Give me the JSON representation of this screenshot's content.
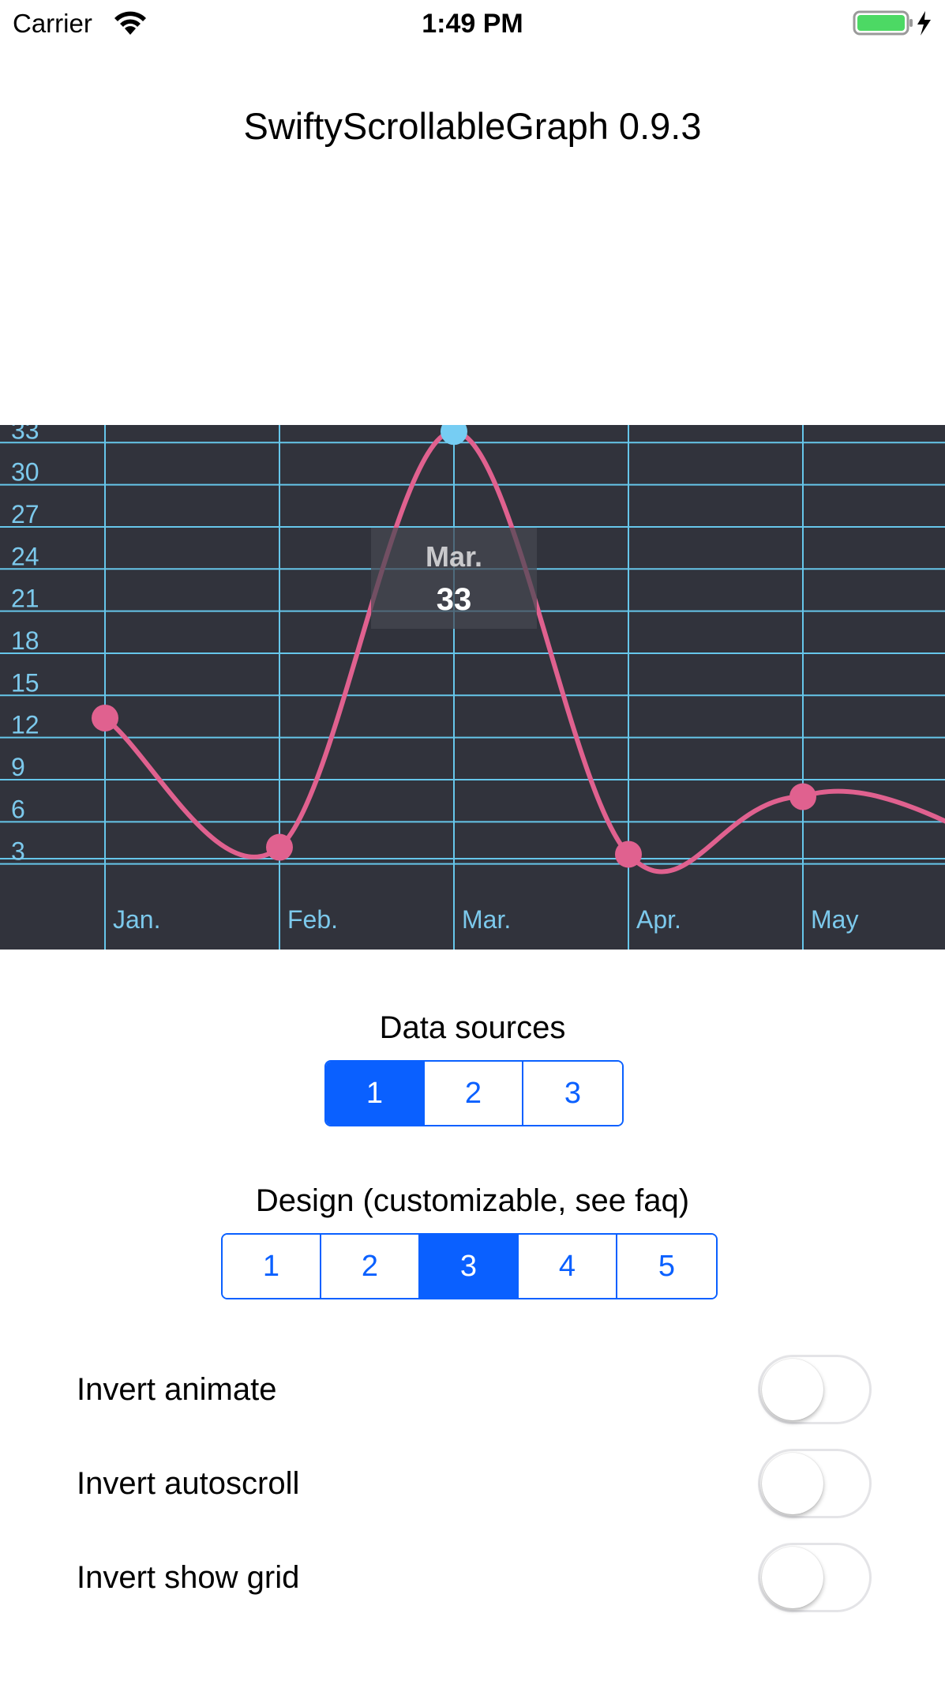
{
  "status_bar": {
    "carrier": "Carrier",
    "time": "1:49 PM",
    "wifi_icon": "wifi-icon",
    "battery_icon": "battery-charging-icon",
    "battery_color": "#4cd964"
  },
  "title": "SwiftyScrollableGraph 0.9.3",
  "chart_data": {
    "type": "line",
    "categories": [
      "Jan.",
      "Feb.",
      "Mar.",
      "Apr.",
      "May"
    ],
    "values": [
      12.6,
      3.4,
      33,
      2.9,
      7
    ],
    "y_ticks": [
      3,
      6,
      9,
      12,
      15,
      18,
      21,
      24,
      27,
      30,
      33
    ],
    "ylim": [
      0,
      36
    ],
    "grid": true,
    "highlight": {
      "label": "Mar.",
      "value": "33"
    },
    "colors": {
      "background": "#31333c",
      "grid": "#66c6ea",
      "line": "#e0618f",
      "highlight_point": "#76cdf3"
    }
  },
  "data_sources": {
    "label": "Data sources",
    "options": [
      "1",
      "2",
      "3"
    ],
    "selected": 0
  },
  "design": {
    "label": "Design (customizable, see faq)",
    "options": [
      "1",
      "2",
      "3",
      "4",
      "5"
    ],
    "selected": 2
  },
  "toggles": [
    {
      "label": "Invert animate",
      "on": false
    },
    {
      "label": "Invert autoscroll",
      "on": false
    },
    {
      "label": "Invert show grid",
      "on": false
    }
  ],
  "accent_color": "#0a60ff"
}
